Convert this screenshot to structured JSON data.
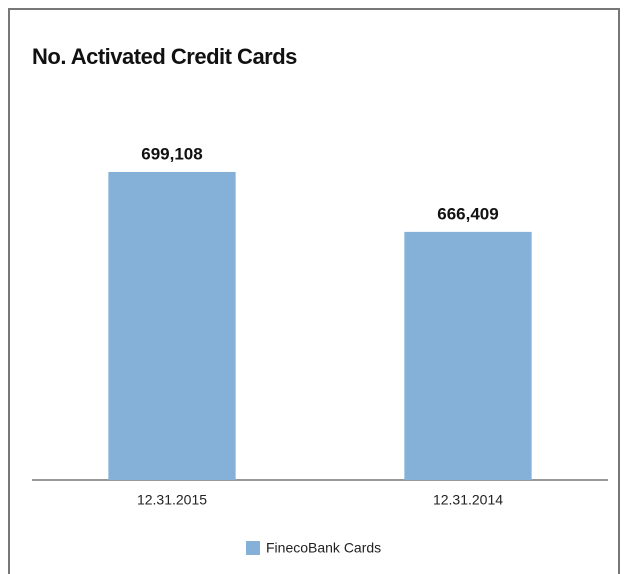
{
  "chart_data": {
    "type": "bar",
    "title": "No. Activated Credit Cards",
    "categories": [
      "12.31.2015",
      "12.31.2014"
    ],
    "series": [
      {
        "name": "FinecoBank Cards",
        "color": "#85b1d8",
        "values": [
          699108,
          666409
        ],
        "value_labels": [
          "699,108",
          "666,409"
        ]
      }
    ],
    "ylim": [
      531000,
      722000
    ]
  }
}
